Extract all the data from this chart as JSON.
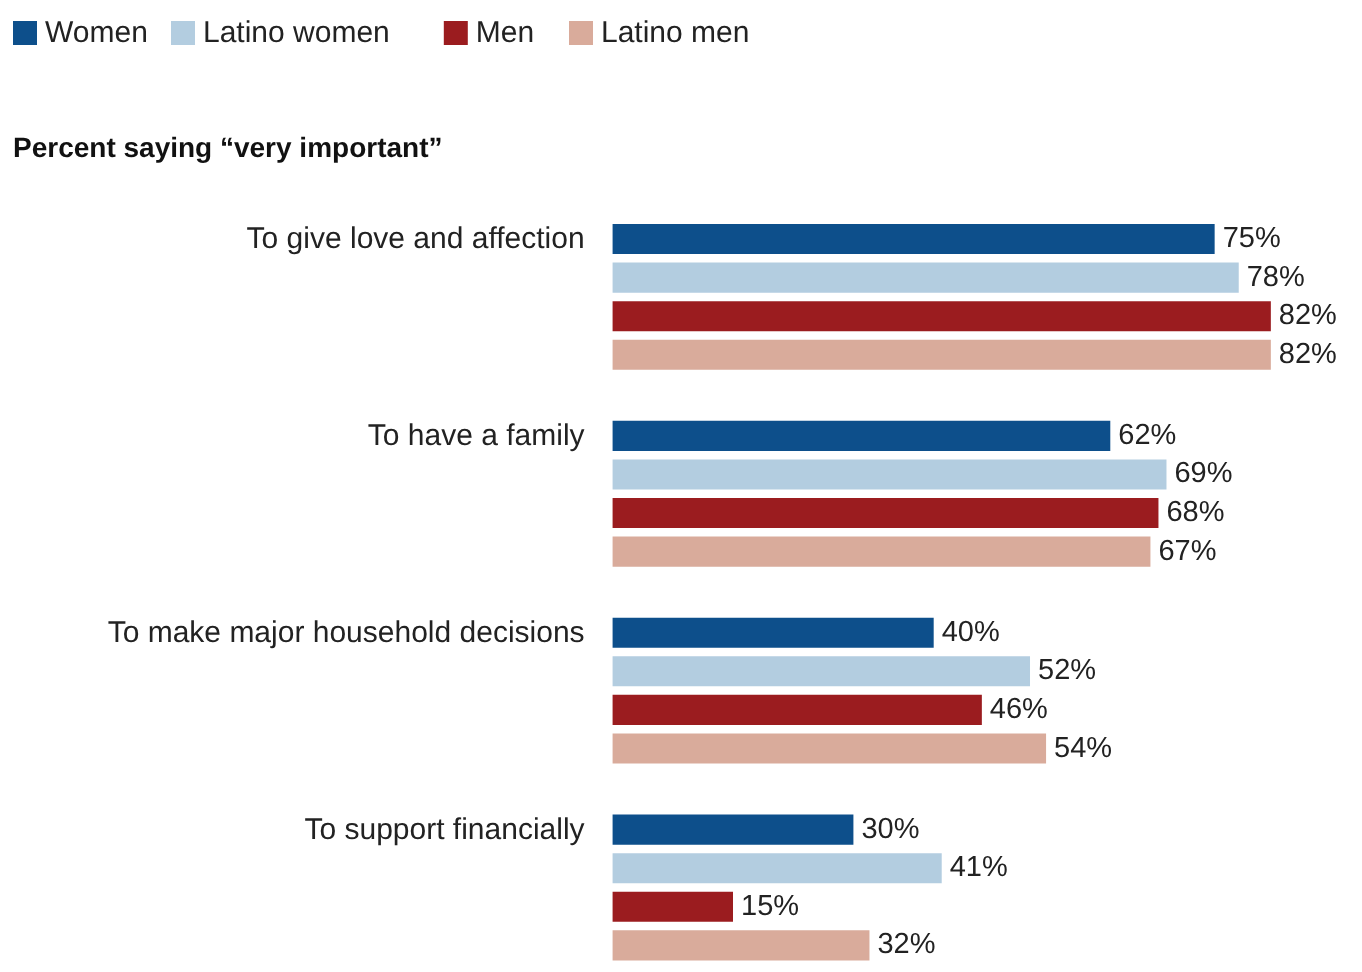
{
  "chart_data": {
    "type": "bar",
    "orientation": "horizontal",
    "title": "Percent saying “very important”",
    "categories": [
      "To give love and affection",
      "To have a family",
      "To make major household decisions",
      "To support financially"
    ],
    "legend": "top left",
    "grid": false,
    "series": [
      {
        "name": "Women",
        "color": "#0d4f8b",
        "values": [
          75,
          62,
          40,
          30
        ],
        "value_labels": [
          "75%",
          "62%",
          "40%",
          "30%"
        ]
      },
      {
        "name": "Latino women",
        "color": "#b3cde0",
        "values": [
          78,
          69,
          52,
          41
        ],
        "value_labels": [
          "78%",
          "69%",
          "52%",
          "41%"
        ]
      },
      {
        "name": "Men",
        "color": "#9b1c1f",
        "values": [
          82,
          68,
          46,
          15
        ],
        "value_labels": [
          "82%",
          "68%",
          "46%",
          "15%"
        ]
      },
      {
        "name": "Latino men",
        "color": "#d9ab9b",
        "values": [
          82,
          67,
          54,
          32
        ],
        "value_labels": [
          "82%",
          "67%",
          "54%",
          "32%"
        ]
      }
    ]
  }
}
